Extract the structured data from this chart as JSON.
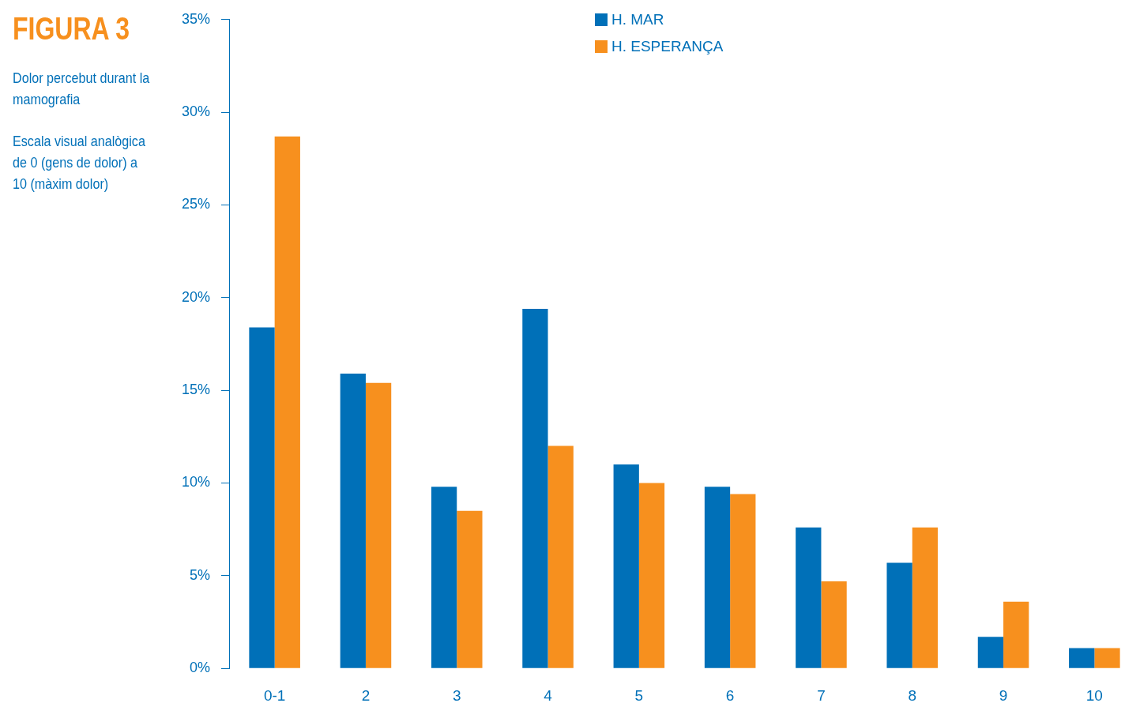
{
  "chart_data": {
    "type": "bar",
    "title": "FIGURA 3",
    "subtitle": "Dolor percebut durant la mamografia",
    "annotations": [
      "Escala visual analògica de 0 (gens de dolor) a 10 (màxim dolor)"
    ],
    "categories": [
      "0-1",
      "2",
      "3",
      "4",
      "5",
      "6",
      "7",
      "8",
      "9",
      "10"
    ],
    "series": [
      {
        "name": "H. MAR",
        "color": "#0070b8",
        "values": [
          18.4,
          15.9,
          9.8,
          19.4,
          11.0,
          9.8,
          7.6,
          5.7,
          1.7,
          1.1
        ]
      },
      {
        "name": "H. ESPERANÇA",
        "color": "#f7901e",
        "values": [
          28.7,
          15.4,
          8.5,
          12.0,
          10.0,
          9.4,
          4.7,
          7.6,
          3.6,
          1.1
        ]
      }
    ],
    "ylim": [
      0,
      35
    ],
    "yticks": [
      {
        "value": 0,
        "label": "0%"
      },
      {
        "value": 5,
        "label": "5%"
      },
      {
        "value": 10,
        "label": "10%"
      },
      {
        "value": 15,
        "label": "15%"
      },
      {
        "value": 20,
        "label": "20%"
      },
      {
        "value": 25,
        "label": "25%"
      },
      {
        "value": 30,
        "label": "30%"
      },
      {
        "value": 35,
        "label": "35%"
      }
    ],
    "grid": false,
    "legend": "top"
  }
}
